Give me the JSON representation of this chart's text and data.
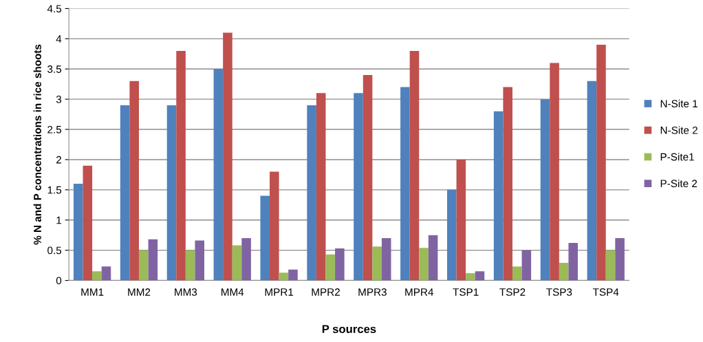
{
  "chart_data": {
    "type": "bar",
    "xlabel": "P sources",
    "ylabel": "% N and P concentrations in rice shoots",
    "categories": [
      "MM1",
      "MM2",
      "MM3",
      "MM4",
      "MPR1",
      "MPR2",
      "MPR3",
      "MPR4",
      "TSP1",
      "TSP2",
      "TSP3",
      "TSP4"
    ],
    "series": [
      {
        "name": "N-Site 1",
        "color": "#4f81bd",
        "values": [
          1.6,
          2.9,
          2.9,
          3.5,
          1.4,
          2.9,
          3.1,
          3.2,
          1.5,
          2.8,
          3.0,
          3.3
        ]
      },
      {
        "name": "N-Site 2",
        "color": "#c0504d",
        "values": [
          1.9,
          3.3,
          3.8,
          4.1,
          1.8,
          3.1,
          3.4,
          3.8,
          2.0,
          3.2,
          3.6,
          3.9
        ]
      },
      {
        "name": "P-Site1",
        "color": "#9bbb59",
        "values": [
          0.15,
          0.5,
          0.5,
          0.58,
          0.13,
          0.43,
          0.56,
          0.54,
          0.12,
          0.23,
          0.29,
          0.5
        ]
      },
      {
        "name": "P-Site 2",
        "color": "#8064a2",
        "values": [
          0.23,
          0.68,
          0.66,
          0.7,
          0.18,
          0.53,
          0.7,
          0.75,
          0.15,
          0.5,
          0.62,
          0.7
        ]
      }
    ],
    "ylim": [
      0,
      4.5
    ],
    "yticks": [
      0,
      0.5,
      1,
      1.5,
      2,
      2.5,
      3,
      3.5,
      4,
      4.5
    ],
    "grid": "y",
    "legend": "right"
  }
}
